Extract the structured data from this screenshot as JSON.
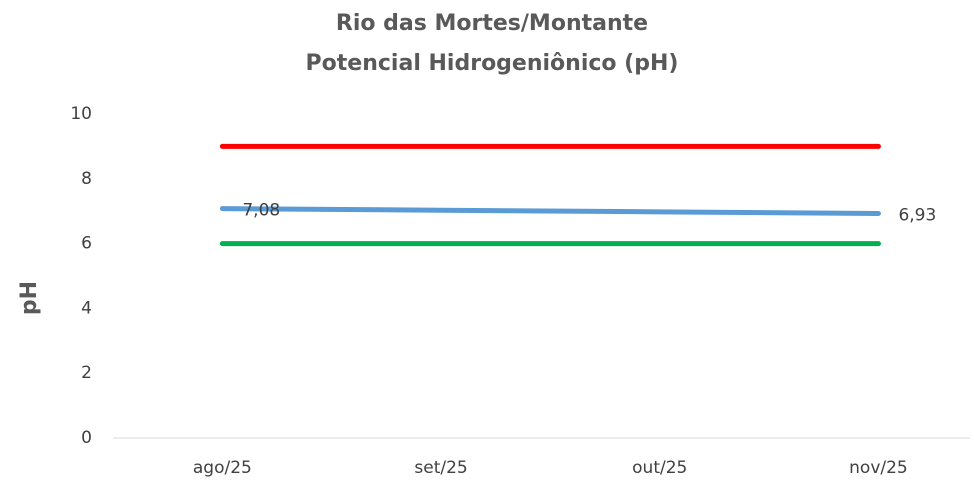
{
  "chart_data": {
    "type": "line",
    "title": "Rio das Mortes/Montante",
    "subtitle": "Potencial Hidrogeniônico (pH)",
    "y_label": "pH",
    "categories": [
      "ago/25",
      "set/25",
      "out/25",
      "nov/25"
    ],
    "series": [
      {
        "color": "#ff0000",
        "values": [
          9,
          9,
          9,
          9
        ]
      },
      {
        "color": "#5b9bd5",
        "values": [
          7.08,
          7.03,
          6.98,
          6.93
        ],
        "value_labels": [
          "7,08",
          null,
          null,
          "6,93"
        ]
      },
      {
        "color": "#00b050",
        "values": [
          6,
          6,
          6,
          6
        ]
      }
    ],
    "ylim": [
      0,
      10
    ],
    "yticks": [
      0,
      2,
      4,
      6,
      8,
      10
    ],
    "grid": false
  }
}
